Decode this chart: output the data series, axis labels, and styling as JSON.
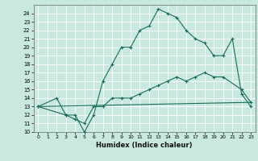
{
  "xlabel": "Humidex (Indice chaleur)",
  "background_color": "#c8e8e0",
  "grid_color": "#ffffff",
  "line_color": "#1a6b5a",
  "xlim": [
    -0.5,
    23.5
  ],
  "ylim": [
    10,
    25
  ],
  "xticks": [
    0,
    1,
    2,
    3,
    4,
    5,
    6,
    7,
    8,
    9,
    10,
    11,
    12,
    13,
    14,
    15,
    16,
    17,
    18,
    19,
    20,
    21,
    22,
    23
  ],
  "yticks": [
    10,
    11,
    12,
    13,
    14,
    15,
    16,
    17,
    18,
    19,
    20,
    21,
    22,
    23,
    24
  ],
  "line1_x": [
    0,
    2,
    3,
    4,
    5,
    6,
    7,
    8,
    9,
    10,
    11,
    12,
    13,
    14,
    15,
    16,
    17,
    18,
    19,
    20,
    21,
    22,
    23
  ],
  "line1_y": [
    13,
    14,
    12,
    12,
    10,
    12,
    16,
    18,
    20,
    20,
    22,
    22.5,
    24.5,
    24,
    23.5,
    22,
    21,
    20.5,
    19,
    19,
    21,
    14.5,
    13
  ],
  "line2_x": [
    0,
    3,
    4,
    5,
    6,
    7,
    8,
    9,
    10,
    11,
    12,
    13,
    14,
    15,
    16,
    17,
    18,
    19,
    20,
    22,
    23
  ],
  "line2_y": [
    13,
    12,
    11.5,
    11,
    13,
    13,
    14,
    14,
    14,
    14.5,
    15,
    15.5,
    16,
    16.5,
    16,
    16.5,
    17,
    16.5,
    16.5,
    15,
    13.5
  ],
  "line3_x": [
    0,
    23
  ],
  "line3_y": [
    13,
    13.5
  ]
}
